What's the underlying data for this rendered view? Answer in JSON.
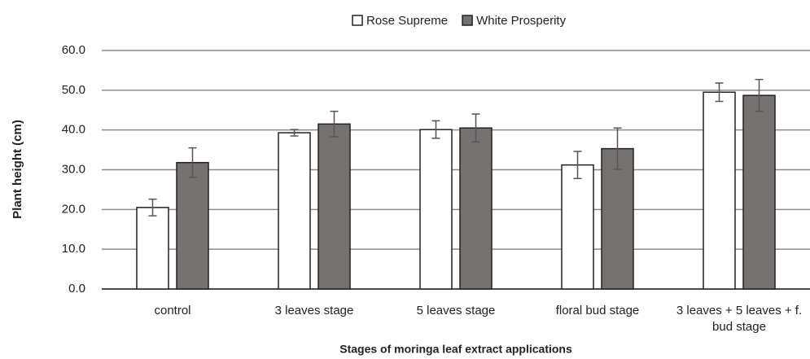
{
  "chart_data": {
    "type": "bar",
    "x_label": "Stages of moringa leaf extract applications",
    "y_label": "Plant height (cm)",
    "categories": [
      "control",
      "3 leaves stage",
      "5 leaves stage",
      "floral bud stage",
      "3 leaves + 5 leaves + f. bud stage"
    ],
    "series": [
      {
        "name": "Rose Supreme",
        "color": "#ffffff",
        "values": [
          20.5,
          39.3,
          40.1,
          31.2,
          49.5
        ],
        "errors": [
          2.1,
          0.8,
          2.2,
          3.4,
          2.3
        ]
      },
      {
        "name": "White Prosperity",
        "color": "#767171",
        "values": [
          31.8,
          41.5,
          40.5,
          35.3,
          48.7
        ],
        "errors": [
          3.7,
          3.2,
          3.5,
          5.2,
          4.0
        ]
      }
    ],
    "ylim": [
      0,
      60
    ],
    "yticks": [
      {
        "value": 0,
        "label": "0.0"
      },
      {
        "value": 10,
        "label": "10.0"
      },
      {
        "value": 20,
        "label": "20.0"
      },
      {
        "value": 30,
        "label": "30.0"
      },
      {
        "value": 40,
        "label": "40.0"
      },
      {
        "value": 50,
        "label": "50.0"
      },
      {
        "value": 60,
        "label": "60.0"
      }
    ],
    "grid": true,
    "legend": "top"
  }
}
